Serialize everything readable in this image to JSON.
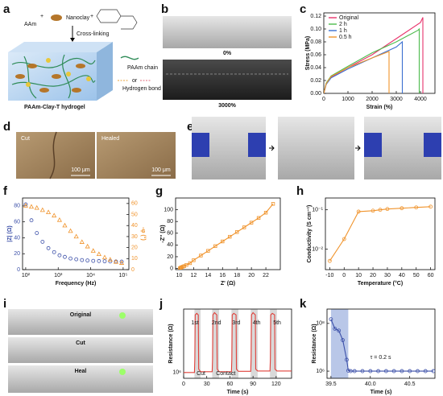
{
  "panel_labels": [
    "a",
    "b",
    "c",
    "d",
    "e",
    "f",
    "g",
    "h",
    "i",
    "j",
    "k"
  ],
  "schematic": {
    "monomer": "AAm",
    "clay": "Nanoclay",
    "step": "Cross-linking",
    "chain": "PAAm chain",
    "or": "or",
    "bond": "Hydrogen bond",
    "product": "PAAm-Clay-T hydrogel"
  },
  "photos": {
    "b_top": "0%",
    "b_bottom": "3000%",
    "d_left": "Cut",
    "d_right": "Healed",
    "d_scale_left": "100 μm",
    "d_scale_right": "100 μm",
    "i_top": "Original",
    "i_middle": "Cut",
    "i_bottom": "Heal"
  },
  "chart_data": [
    {
      "type": "line",
      "x_label": "Strain (%)",
      "y_label": "Stress (MPa)",
      "xlim": [
        0,
        4600
      ],
      "ylim": [
        0,
        0.125
      ],
      "xticks": [
        0,
        1000,
        2000,
        3000,
        4000
      ],
      "yticks": [
        {
          "value": 0,
          "label": "0.00"
        },
        0.02,
        0.04,
        0.06,
        0.08,
        {
          "value": 0.1,
          "label": "0.10"
        },
        0.12
      ],
      "legend": "upper left",
      "series": [
        {
          "name": "Original",
          "color": "#e8336c",
          "x": [
            0,
            100,
            300,
            1000,
            2000,
            3000,
            4000,
            4100,
            4100
          ],
          "values": [
            0,
            0.015,
            0.025,
            0.04,
            0.06,
            0.085,
            0.11,
            0.118,
            0
          ]
        },
        {
          "name": "2 h",
          "color": "#4cbb4c",
          "x": [
            0,
            100,
            300,
            1000,
            2000,
            3000,
            3900,
            3950,
            3950
          ],
          "values": [
            0,
            0.016,
            0.027,
            0.042,
            0.063,
            0.08,
            0.098,
            0.1,
            0
          ]
        },
        {
          "name": "1 h",
          "color": "#3a6fd0",
          "x": [
            0,
            100,
            300,
            1000,
            2000,
            3000,
            3250,
            3250
          ],
          "values": [
            0,
            0.014,
            0.024,
            0.038,
            0.055,
            0.072,
            0.08,
            0
          ]
        },
        {
          "name": "0.5 h",
          "color": "#f0932b",
          "x": [
            0,
            100,
            300,
            1000,
            2000,
            2700,
            2700
          ],
          "values": [
            0,
            0.015,
            0.026,
            0.04,
            0.055,
            0.065,
            0
          ]
        }
      ]
    },
    {
      "type": "scatter",
      "x_label": "Frequency (Hz)",
      "y_label": "|Z| (Ω)",
      "y2_label": "-φ (°)",
      "xscale": "log",
      "xlim": [
        80,
        150000
      ],
      "ylim": [
        0,
        90
      ],
      "y2lim": [
        0,
        65
      ],
      "xticks": [
        {
          "value": 100,
          "label": "10²"
        },
        {
          "value": 1000,
          "label": "10³"
        },
        {
          "value": 10000,
          "label": "10⁴"
        },
        {
          "value": 100000,
          "label": "10⁵"
        }
      ],
      "yticks": [
        0,
        20,
        40,
        60,
        80
      ],
      "y2ticks": [
        0,
        10,
        20,
        30,
        40,
        50,
        60
      ],
      "x": [
        100,
        150,
        220,
        330,
        500,
        750,
        1100,
        1600,
        2400,
        3600,
        5400,
        8000,
        12000,
        18000,
        27000,
        40000,
        60000,
        90000
      ],
      "series": [
        {
          "color": "#3b4fa8",
          "marker": "circle",
          "values": [
            82,
            62,
            46,
            35,
            27,
            22,
            18,
            16,
            14,
            13,
            12,
            11.5,
            11,
            10.8,
            10.5,
            10.3,
            10.2,
            10.1
          ]
        },
        {
          "color": "#f0932b",
          "marker": "triangle",
          "axis": "y2",
          "values": [
            58,
            57,
            56,
            54,
            52,
            49,
            45,
            40,
            35,
            30,
            25,
            21,
            17,
            14,
            11,
            9,
            7,
            6
          ]
        }
      ]
    },
    {
      "type": "scatter",
      "x_label": "Z' (Ω)",
      "y_label": "-Z'' (Ω)",
      "xlim": [
        9.5,
        24
      ],
      "ylim": [
        -2,
        120
      ],
      "xticks": [
        10,
        12,
        14,
        16,
        18,
        20,
        22
      ],
      "yticks": [
        0,
        20,
        40,
        60,
        80,
        100
      ],
      "x": [
        10.1,
        10.2,
        10.3,
        10.5,
        10.7,
        11,
        11.5,
        12,
        13,
        14,
        15,
        16,
        17,
        18,
        19,
        20,
        21,
        22,
        23
      ],
      "series": [
        {
          "color": "#f0932b",
          "marker": "square",
          "line": true,
          "values": [
            0.5,
            1,
            2,
            3,
            4,
            6,
            9,
            14,
            22,
            30,
            38,
            46,
            54,
            62,
            70,
            78,
            86,
            95,
            110
          ]
        }
      ]
    },
    {
      "type": "line",
      "x_label": "Temperature (°C)",
      "y_label": "Conductivity (S cm⁻¹)",
      "yscale": "log",
      "xlim": [
        -13,
        63
      ],
      "ylim": [
        0.003,
        0.2
      ],
      "xticks": [
        -10,
        0,
        10,
        20,
        30,
        40,
        50,
        60
      ],
      "yticks": [
        {
          "value": 0.01,
          "label": "10⁻²"
        },
        {
          "value": 0.1,
          "label": "10⁻¹"
        }
      ],
      "x": [
        -10,
        0,
        10,
        20,
        25,
        30,
        40,
        50,
        60
      ],
      "series": [
        {
          "color": "#f0932b",
          "marker": "circle",
          "line": true,
          "values": [
            0.005,
            0.018,
            0.09,
            0.095,
            0.1,
            0.105,
            0.11,
            0.115,
            0.12
          ]
        }
      ]
    },
    {
      "type": "line",
      "x_label": "Time (s)",
      "y_label": "Resistance (Ω)",
      "yscale": "log",
      "xlim": [
        0,
        140
      ],
      "ylim": [
        500000,
        2000000000
      ],
      "xticks": [
        0,
        30,
        60,
        90,
        120
      ],
      "yticks": [
        {
          "value": 1000000,
          "label": "10⁶"
        }
      ],
      "annotations": [
        "1st",
        "2nd",
        "3rd",
        "4th",
        "5th",
        "Cut",
        "Contact"
      ],
      "spans": [
        [
          14,
          22
        ],
        [
          37,
          46
        ],
        [
          62,
          71
        ],
        [
          87,
          96
        ],
        [
          112,
          121
        ]
      ],
      "span_color": "#d9d9d9",
      "x": [
        0,
        14,
        14.5,
        15,
        17,
        19,
        19.5,
        22,
        37,
        37.5,
        38,
        40,
        43,
        43.5,
        46,
        62,
        62.5,
        63,
        65,
        68,
        68.5,
        71,
        87,
        87.5,
        88,
        90,
        93,
        93.5,
        96,
        112,
        112.5,
        113,
        115,
        118,
        118.5,
        121,
        140
      ],
      "series": [
        {
          "color": "#e0403a",
          "values": [
            1000000,
            1000000,
            5000000,
            1000000000,
            1200000000,
            1000000000,
            1500000,
            1100000,
            1100000,
            5000000,
            1000000000,
            1300000000,
            1000000000,
            1500000,
            1100000,
            1100000,
            5000000,
            1000000000,
            1200000000,
            1000000000,
            1500000,
            1150000,
            1150000,
            5000000,
            1000000000,
            1300000000,
            1000000000,
            1500000,
            1200000,
            1200000,
            5000000,
            1000000000,
            1200000000,
            1000000000,
            1500000,
            1200000,
            1200000
          ]
        }
      ]
    },
    {
      "type": "line",
      "x_label": "Time (s)",
      "y_label": "Resistance (Ω)",
      "yscale": "log",
      "xlim": [
        39.45,
        40.82
      ],
      "ylim": [
        500000,
        400000000
      ],
      "xticks": [
        39.5,
        {
          "value": 40,
          "label": "40.0"
        },
        40.5
      ],
      "yticks": [
        {
          "value": 1000000,
          "label": "10⁶"
        },
        {
          "value": 100000000,
          "label": "10⁸"
        }
      ],
      "annotations": [
        "τ = 0.2 s"
      ],
      "spans": [
        [
          39.5,
          39.72
        ]
      ],
      "span_color": "#b9c7e8",
      "x": [
        39.5,
        39.55,
        39.6,
        39.65,
        39.7,
        39.72,
        39.75,
        39.8,
        39.9,
        40,
        40.1,
        40.2,
        40.3,
        40.4,
        40.5,
        40.6,
        40.7,
        40.8
      ],
      "series": [
        {
          "color": "#3b4fa8",
          "marker": "circle",
          "line": true,
          "values": [
            150000000,
            60000000,
            50000000,
            20000000,
            3000000,
            1050000,
            1000000,
            1000000,
            1000000,
            1000000,
            1000000,
            1000000,
            1000000,
            1000000,
            1000000,
            1000000,
            1000000,
            1000000
          ]
        }
      ]
    }
  ]
}
